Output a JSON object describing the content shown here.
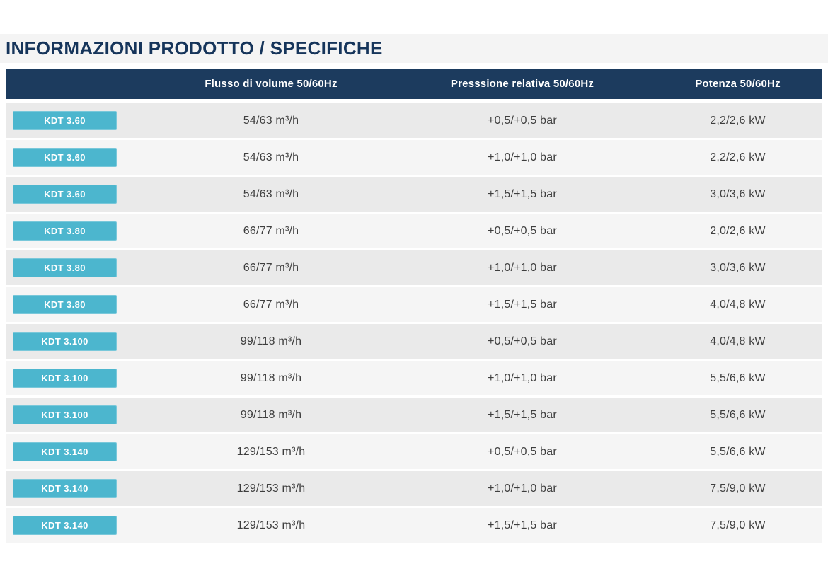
{
  "page": {
    "title": "INFORMAZIONI PRODOTTO / SPECIFICHE"
  },
  "colors": {
    "header_bg": "#1c3b5e",
    "title_text": "#16355b",
    "model_button_bg": "#4cb6ce",
    "row_odd_bg": "#eaeaea",
    "row_even_bg": "#f5f5f5"
  },
  "table": {
    "columns": [
      "",
      "Flusso di volume 50/60Hz",
      "Presssione relativa 50/60Hz",
      "Potenza 50/60Hz"
    ],
    "rows": [
      {
        "model": "KDT 3.60",
        "flow": "54/63 m³/h",
        "pressure": "+0,5/+0,5 bar",
        "power": "2,2/2,6 kW"
      },
      {
        "model": "KDT 3.60",
        "flow": "54/63 m³/h",
        "pressure": "+1,0/+1,0 bar",
        "power": "2,2/2,6 kW"
      },
      {
        "model": "KDT 3.60",
        "flow": "54/63 m³/h",
        "pressure": "+1,5/+1,5 bar",
        "power": "3,0/3,6 kW"
      },
      {
        "model": "KDT 3.80",
        "flow": "66/77 m³/h",
        "pressure": "+0,5/+0,5 bar",
        "power": "2,0/2,6 kW"
      },
      {
        "model": "KDT 3.80",
        "flow": "66/77 m³/h",
        "pressure": "+1,0/+1,0 bar",
        "power": "3,0/3,6 kW"
      },
      {
        "model": "KDT 3.80",
        "flow": "66/77 m³/h",
        "pressure": "+1,5/+1,5 bar",
        "power": "4,0/4,8 kW"
      },
      {
        "model": "KDT 3.100",
        "flow": "99/118 m³/h",
        "pressure": "+0,5/+0,5 bar",
        "power": "4,0/4,8 kW"
      },
      {
        "model": "KDT 3.100",
        "flow": "99/118 m³/h",
        "pressure": "+1,0/+1,0 bar",
        "power": "5,5/6,6 kW"
      },
      {
        "model": "KDT 3.100",
        "flow": "99/118 m³/h",
        "pressure": "+1,5/+1,5 bar",
        "power": "5,5/6,6 kW"
      },
      {
        "model": "KDT 3.140",
        "flow": "129/153 m³/h",
        "pressure": "+0,5/+0,5 bar",
        "power": "5,5/6,6 kW"
      },
      {
        "model": "KDT 3.140",
        "flow": "129/153 m³/h",
        "pressure": "+1,0/+1,0 bar",
        "power": "7,5/9,0 kW"
      },
      {
        "model": "KDT 3.140",
        "flow": "129/153 m³/h",
        "pressure": "+1,5/+1,5 bar",
        "power": "7,5/9,0 kW"
      }
    ]
  }
}
